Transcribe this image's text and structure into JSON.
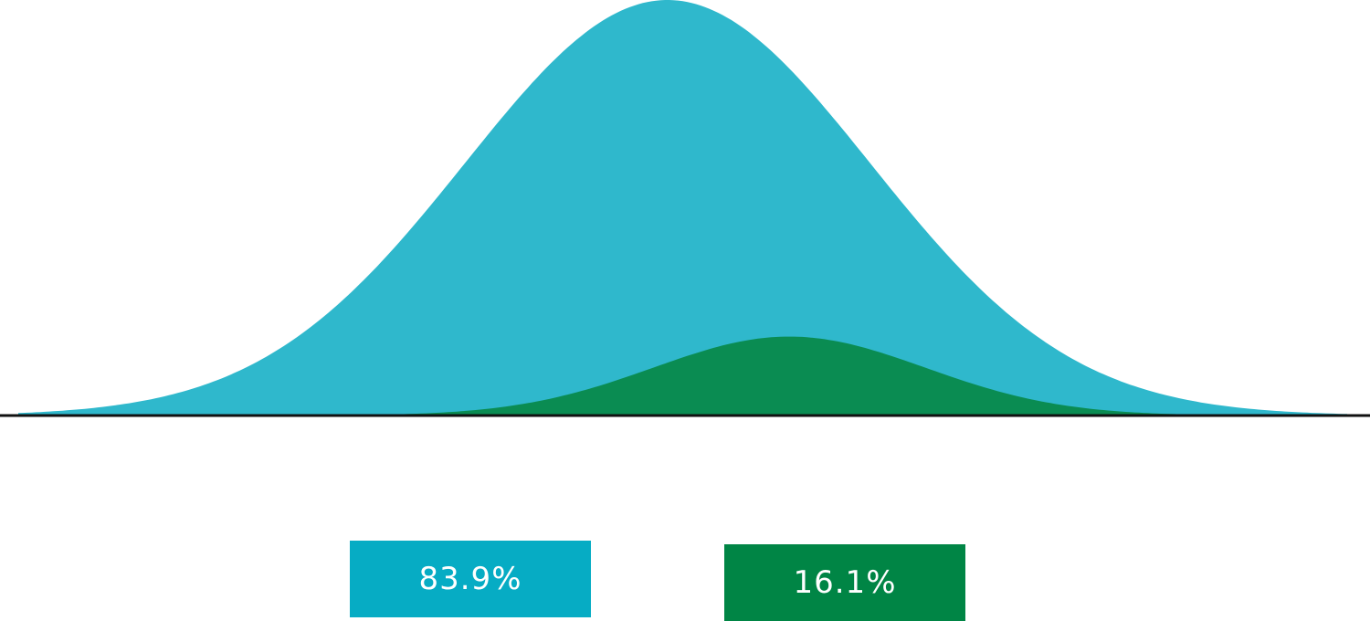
{
  "chart_data": {
    "type": "area",
    "title": "",
    "xlabel": "",
    "ylabel": "",
    "grid": false,
    "legend_placement": "bottom-center",
    "series": [
      {
        "label": "83.9%",
        "share": 83.9,
        "mean": 0.0,
        "sd": 1.0,
        "peak": 1.0,
        "fill_color": "#2fb8cc",
        "legend_color": "#06acc4"
      },
      {
        "label": "16.1%",
        "share": 16.1,
        "mean": 0.6,
        "sd": 0.67,
        "peak": 0.19,
        "fill_color": "#0a8c52",
        "legend_color": "#008545"
      }
    ],
    "xlim": [
      -3.2,
      3.35
    ],
    "ylim": [
      0,
      1
    ],
    "baseline_color": "#111111"
  }
}
